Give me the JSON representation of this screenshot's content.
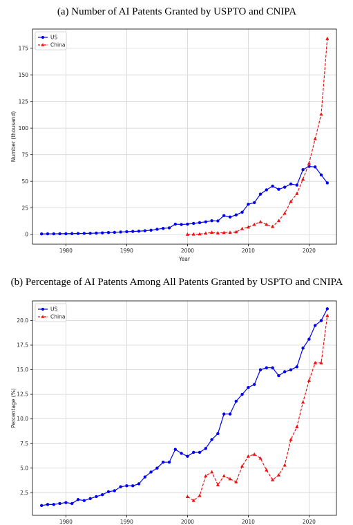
{
  "chart_data": [
    {
      "type": "line",
      "title": "(a) Number of AI Patents Granted by USPTO and CNIPA",
      "xlabel": "Year",
      "ylabel": "Number (thousand)",
      "xlim": [
        1974.5,
        2024.5
      ],
      "ylim": [
        -9,
        193
      ],
      "xticks": [
        1980,
        1990,
        2000,
        2010,
        2020
      ],
      "yticks": [
        0,
        25,
        50,
        75,
        100,
        125,
        150,
        175
      ],
      "xtick_labels": [
        "1980",
        "1990",
        "2000",
        "2010",
        "2020"
      ],
      "ytick_labels": [
        "0",
        "25",
        "50",
        "75",
        "100",
        "125",
        "150",
        "175"
      ],
      "grid": true,
      "legend": "top-left",
      "series": [
        {
          "name": "US",
          "color": "#0000ee",
          "style": "solid-dot",
          "x": [
            1976,
            1977,
            1978,
            1979,
            1980,
            1981,
            1982,
            1983,
            1984,
            1985,
            1986,
            1987,
            1988,
            1989,
            1990,
            1991,
            1992,
            1993,
            1994,
            1995,
            1996,
            1997,
            1998,
            1999,
            2000,
            2001,
            2002,
            2003,
            2004,
            2005,
            2006,
            2007,
            2008,
            2009,
            2010,
            2011,
            2012,
            2013,
            2014,
            2015,
            2016,
            2017,
            2018,
            2019,
            2020,
            2021,
            2022,
            2023
          ],
          "values": [
            0.6,
            0.7,
            0.7,
            0.8,
            0.8,
            0.9,
            1.0,
            1.1,
            1.2,
            1.4,
            1.6,
            1.9,
            2.1,
            2.4,
            2.7,
            3.0,
            3.2,
            3.6,
            4.1,
            5.0,
            5.8,
            6.3,
            9.8,
            9.5,
            9.8,
            10.5,
            11.2,
            12.0,
            13.0,
            12.8,
            17.8,
            16.5,
            18.5,
            21.0,
            28.5,
            30.0,
            38.0,
            42.0,
            45.5,
            42.5,
            44.5,
            47.5,
            46.5,
            61.0,
            64.0,
            63.5,
            56.0,
            48.5
          ]
        },
        {
          "name": "China",
          "color": "#ee1111",
          "style": "dashed-triangle",
          "x": [
            2000,
            2001,
            2002,
            2003,
            2004,
            2005,
            2006,
            2007,
            2008,
            2009,
            2010,
            2011,
            2012,
            2013,
            2014,
            2015,
            2016,
            2017,
            2018,
            2019,
            2020,
            2021,
            2022,
            2023
          ],
          "values": [
            0.2,
            0.3,
            0.5,
            1.2,
            2.0,
            1.5,
            1.8,
            2.0,
            2.5,
            5.5,
            7.0,
            9.5,
            12.0,
            9.5,
            7.5,
            13.0,
            20.0,
            31.0,
            38.5,
            52.0,
            67.0,
            90.0,
            113.0,
            184.0
          ]
        }
      ]
    },
    {
      "type": "line",
      "title": "(b) Percentage of AI Patents Among All Patents Granted by USPTO and CNIPA",
      "xlabel": "",
      "ylabel": "Percentage (%)",
      "xlim": [
        1974.5,
        2024.5
      ],
      "ylim": [
        0.2,
        22.0
      ],
      "xticks": [
        1980,
        1990,
        2000,
        2010,
        2020
      ],
      "yticks": [
        2.5,
        5.0,
        7.5,
        10.0,
        12.5,
        15.0,
        17.5,
        20.0
      ],
      "xtick_labels": [
        "1980",
        "1990",
        "2000",
        "2010",
        "2020"
      ],
      "ytick_labels": [
        "2.5",
        "5.0",
        "7.5",
        "10.0",
        "12.5",
        "15.0",
        "17.5",
        "20.0"
      ],
      "grid": true,
      "legend": "top-left",
      "series": [
        {
          "name": "US",
          "color": "#0000ee",
          "style": "solid-dot",
          "x": [
            1976,
            1977,
            1978,
            1979,
            1980,
            1981,
            1982,
            1983,
            1984,
            1985,
            1986,
            1987,
            1988,
            1989,
            1990,
            1991,
            1992,
            1993,
            1994,
            1995,
            1996,
            1997,
            1998,
            1999,
            2000,
            2001,
            2002,
            2003,
            2004,
            2005,
            2006,
            2007,
            2008,
            2009,
            2010,
            2011,
            2012,
            2013,
            2014,
            2015,
            2016,
            2017,
            2018,
            2019,
            2020,
            2021,
            2022,
            2023
          ],
          "values": [
            1.2,
            1.3,
            1.3,
            1.4,
            1.5,
            1.4,
            1.8,
            1.7,
            1.9,
            2.1,
            2.3,
            2.6,
            2.7,
            3.1,
            3.2,
            3.2,
            3.4,
            4.1,
            4.6,
            5.0,
            5.6,
            5.6,
            6.9,
            6.5,
            6.2,
            6.6,
            6.6,
            7.0,
            7.9,
            8.5,
            10.5,
            10.5,
            11.8,
            12.5,
            13.2,
            13.5,
            15.0,
            15.2,
            15.2,
            14.4,
            14.8,
            15.0,
            15.3,
            17.2,
            18.1,
            19.5,
            20.0,
            21.2
          ]
        },
        {
          "name": "China",
          "color": "#ee1111",
          "style": "dashed-triangle",
          "x": [
            2000,
            2001,
            2002,
            2003,
            2004,
            2005,
            2006,
            2007,
            2008,
            2009,
            2010,
            2011,
            2012,
            2013,
            2014,
            2015,
            2016,
            2017,
            2018,
            2019,
            2020,
            2021,
            2022,
            2023
          ],
          "values": [
            2.1,
            1.7,
            2.2,
            4.2,
            4.6,
            3.3,
            4.2,
            3.9,
            3.6,
            5.2,
            6.2,
            6.4,
            6.0,
            4.8,
            3.8,
            4.3,
            5.3,
            7.9,
            9.2,
            11.7,
            13.9,
            15.7,
            15.7,
            20.5
          ]
        }
      ]
    }
  ]
}
